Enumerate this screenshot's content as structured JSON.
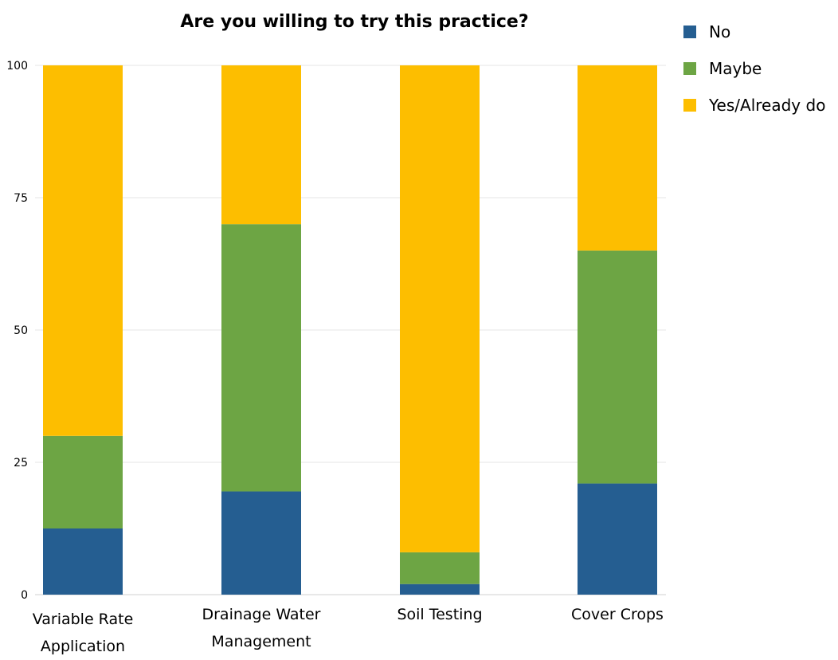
{
  "chart_data": {
    "type": "bar",
    "stacked": true,
    "title": "Are you willing to try this practice?",
    "categories": [
      [
        "Variable Rate",
        "Application"
      ],
      [
        "Drainage Water",
        "Management"
      ],
      [
        "Soil Testing"
      ],
      [
        "Cover Crops"
      ]
    ],
    "series": [
      {
        "name": "No",
        "color": "#255E91",
        "values": [
          12.5,
          19.5,
          2,
          21
        ]
      },
      {
        "name": "Maybe",
        "color": "#6DA544",
        "values": [
          17.5,
          50.5,
          6,
          44
        ]
      },
      {
        "name": "Yes/Already do",
        "color": "#FDBE00",
        "values": [
          70,
          30,
          92,
          35
        ]
      }
    ],
    "ylim": [
      0,
      100
    ],
    "yticks": [
      0,
      25,
      50,
      75,
      100
    ],
    "grid": true,
    "legend_position": "top-right",
    "xlabel": "",
    "ylabel": ""
  }
}
